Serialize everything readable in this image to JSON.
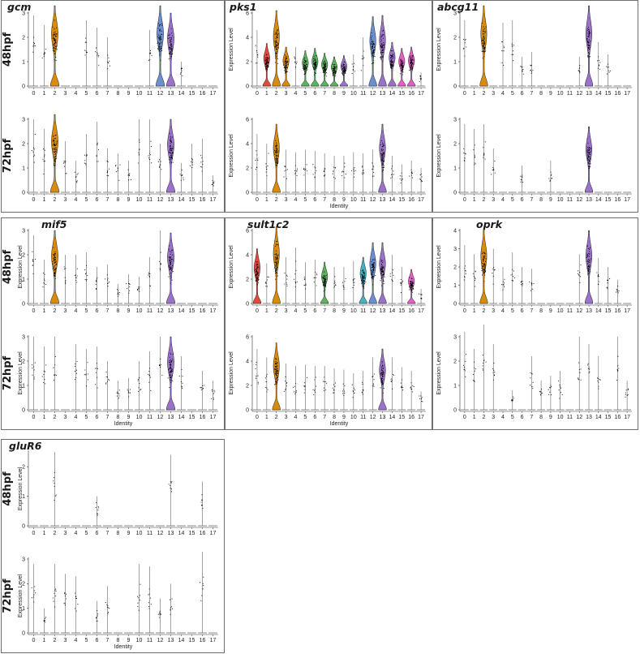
{
  "axis_labels": {
    "y": "Expression Level",
    "x": "Identity",
    "x_ticks": [
      "0",
      "1",
      "2",
      "3",
      "4",
      "5",
      "6",
      "7",
      "8",
      "9",
      "10",
      "11",
      "12",
      "13",
      "14",
      "15",
      "16",
      "17"
    ]
  },
  "colors": {
    "orange": "#d98b0b",
    "purple": "#9a72c9",
    "blue": "#6b8fcf",
    "green": "#5db35d",
    "teal": "#47b1c4",
    "pink": "#e65fc6",
    "red": "#e04a3d",
    "dots": "#000000"
  },
  "chart_data": [
    {
      "type": "violin",
      "gene": "gcm",
      "rows": [
        {
          "label": "48hpf",
          "ylim": [
            0,
            3
          ],
          "yticks": [
            "0",
            "1",
            "2",
            "3"
          ],
          "colored": {
            "2": "orange",
            "12": "blue",
            "13": "purple"
          },
          "peaks": [
            2.9,
            2.5,
            3.3,
            0,
            0,
            2.7,
            2.4,
            2.0,
            0,
            0,
            0,
            2.3,
            3.3,
            3.0,
            1.0,
            0,
            0,
            0
          ]
        },
        {
          "label": "72hpf",
          "ylim": [
            0,
            3
          ],
          "yticks": [
            "0",
            "1",
            "2",
            "3"
          ],
          "colored": {
            "2": "orange",
            "13": "purple"
          },
          "peaks": [
            3.0,
            2.6,
            3.2,
            2.1,
            1.3,
            2.4,
            2.9,
            1.8,
            1.6,
            1.3,
            3.0,
            3.0,
            2.0,
            3.0,
            1.2,
            2.0,
            2.2,
            0.7
          ]
        }
      ]
    },
    {
      "type": "violin",
      "gene": "pks1",
      "rows": [
        {
          "label": "48hpf",
          "ylim": [
            0,
            6
          ],
          "yticks": [
            "0",
            "2",
            "4",
            "6"
          ],
          "colored": {
            "1": "red",
            "2": "orange",
            "3": "orange",
            "5": "green",
            "6": "green",
            "7": "green",
            "8": "green",
            "9": "purple",
            "12": "blue",
            "13": "purple",
            "14": "purple",
            "15": "pink",
            "16": "pink"
          },
          "peaks": [
            4.6,
            3.5,
            6.2,
            3.2,
            3.2,
            2.9,
            3.1,
            2.7,
            2.4,
            2.5,
            2.6,
            4.0,
            5.7,
            5.8,
            3.6,
            3.1,
            3.2,
            1.1
          ]
        },
        {
          "label": "72hpf",
          "ylim": [
            0,
            6
          ],
          "yticks": [
            "0",
            "2",
            "4",
            "6"
          ],
          "colored": {
            "2": "orange",
            "13": "purple"
          },
          "peaks": [
            4.8,
            4.0,
            5.6,
            3.5,
            3.3,
            3.5,
            3.4,
            3.2,
            3.0,
            3.0,
            3.3,
            3.2,
            3.5,
            5.6,
            3.0,
            2.3,
            2.6,
            2.0
          ]
        }
      ]
    },
    {
      "type": "violin",
      "gene": "abcg11",
      "rows": [
        {
          "label": "48hpf",
          "ylim": [
            0,
            3
          ],
          "yticks": [
            "0",
            "1",
            "2",
            "3"
          ],
          "colored": {
            "2": "orange",
            "13": "purple"
          },
          "peaks": [
            2.7,
            0,
            3.3,
            0,
            2.6,
            2.7,
            1.2,
            1.4,
            0,
            0,
            0,
            0,
            1.2,
            3.3,
            1.8,
            1.3,
            0,
            0
          ]
        },
        {
          "label": "72hpf",
          "ylim": [
            0,
            3
          ],
          "yticks": [
            "0",
            "1",
            "2",
            "3"
          ],
          "colored": {
            "13": "purple"
          },
          "peaks": [
            2.8,
            2.6,
            2.8,
            1.8,
            0,
            0,
            1.1,
            0,
            0,
            1.3,
            0,
            0,
            0,
            2.7,
            0,
            0,
            0,
            0
          ]
        }
      ]
    },
    {
      "type": "violin",
      "gene": "mif5",
      "rows": [
        {
          "label": "48hpf",
          "ylim": [
            0,
            3
          ],
          "yticks": [
            "0",
            "1",
            "2",
            "3"
          ],
          "colored": {
            "2": "orange",
            "13": "purple"
          },
          "peaks": [
            2.8,
            1.8,
            3.0,
            2.0,
            2.0,
            2.1,
            1.5,
            1.6,
            0.8,
            1.2,
            1.1,
            1.9,
            3.0,
            2.9,
            0,
            0,
            0,
            0
          ]
        },
        {
          "label": "72hpf",
          "ylim": [
            0,
            3
          ],
          "yticks": [
            "0",
            "1",
            "2",
            "3"
          ],
          "colored": {
            "13": "purple"
          },
          "peaks": [
            3.0,
            2.6,
            3.0,
            0,
            2.7,
            2.5,
            2.6,
            2.0,
            1.2,
            1.3,
            2.0,
            2.4,
            3.0,
            3.0,
            2.2,
            0,
            1.6,
            1.2
          ]
        }
      ]
    },
    {
      "type": "violin",
      "gene": "sult1c2",
      "rows": [
        {
          "label": "48hpf",
          "ylim": [
            0,
            6
          ],
          "yticks": [
            "0",
            "2",
            "4",
            "6"
          ],
          "colored": {
            "0": "red",
            "2": "orange",
            "7": "green",
            "11": "teal",
            "12": "blue",
            "13": "purple",
            "16": "pink"
          },
          "peaks": [
            4.5,
            3.3,
            6.3,
            3.8,
            4.6,
            3.4,
            3.6,
            3.4,
            3.0,
            3.0,
            3.5,
            3.8,
            5.0,
            5.0,
            4.0,
            3.0,
            2.8,
            1.2
          ]
        },
        {
          "label": "72hpf",
          "ylim": [
            0,
            6
          ],
          "yticks": [
            "0",
            "2",
            "4",
            "6"
          ],
          "colored": {
            "2": "orange",
            "13": "purple"
          },
          "peaks": [
            5.0,
            4.3,
            5.5,
            3.8,
            3.6,
            3.7,
            3.6,
            3.6,
            3.4,
            3.3,
            3.0,
            3.2,
            4.3,
            5.0,
            4.3,
            3.5,
            3.2,
            1.5
          ]
        }
      ]
    },
    {
      "type": "violin",
      "gene": "oprk",
      "rows": [
        {
          "label": "48hpf",
          "ylim": [
            0,
            4
          ],
          "yticks": [
            "0",
            "1",
            "2",
            "3",
            "4"
          ],
          "colored": {
            "2": "orange",
            "13": "purple"
          },
          "peaks": [
            3.2,
            2.7,
            4.0,
            3.0,
            2.0,
            2.8,
            2.0,
            1.9,
            0,
            0,
            0,
            0,
            2.7,
            4.0,
            2.5,
            2.0,
            1.3,
            0
          ]
        },
        {
          "label": "72hpf",
          "ylim": [
            0,
            3
          ],
          "yticks": [
            "0",
            "1",
            "2",
            "3"
          ],
          "colored": {},
          "peaks": [
            3.2,
            2.5,
            3.5,
            2.7,
            0,
            0.8,
            0,
            2.2,
            1.2,
            1.4,
            1.6,
            0,
            3.0,
            2.7,
            2.2,
            0,
            3.0,
            1.2
          ]
        }
      ]
    },
    {
      "type": "violin",
      "gene": "gluR6",
      "rows": [
        {
          "label": "48hpf",
          "ylim": [
            0,
            2.5
          ],
          "yticks": [
            "0",
            "1",
            "2"
          ],
          "colored": {},
          "peaks": [
            0,
            0,
            2.5,
            0,
            0,
            0,
            1.0,
            0,
            0,
            0,
            0,
            0,
            0,
            2.4,
            0,
            0,
            1.5,
            0
          ]
        },
        {
          "label": "72hpf",
          "ylim": [
            0,
            3
          ],
          "yticks": [
            "0",
            "1",
            "2",
            "3"
          ],
          "colored": {},
          "peaks": [
            2.8,
            1.0,
            2.8,
            2.4,
            2.3,
            0,
            1.3,
            1.9,
            0,
            0,
            2.8,
            2.7,
            1.4,
            2.0,
            0,
            0,
            3.3,
            0
          ]
        }
      ]
    }
  ]
}
